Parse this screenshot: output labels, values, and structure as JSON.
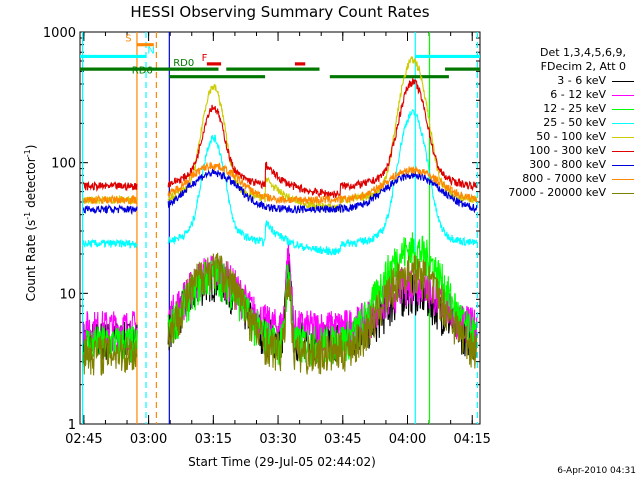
{
  "chart_data": {
    "type": "line",
    "title": "HESSI Observing Summary Count Rates",
    "xlabel": "Start Time (29-Jul-05 02:44:02)",
    "ylabel_main": "Count Rate (s",
    "ylabel_sup1": "-1",
    "ylabel_mid": " detector",
    "ylabel_sup2": "-1",
    "ylabel_end": ")",
    "yscale": "log",
    "ylim": [
      1,
      1000
    ],
    "xlim": [
      2.735,
      4.28
    ],
    "x_ticks": [
      {
        "x": 2.75,
        "label": "02:45"
      },
      {
        "x": 3.0,
        "label": "03:00"
      },
      {
        "x": 3.25,
        "label": "03:15"
      },
      {
        "x": 3.5,
        "label": "03:30"
      },
      {
        "x": 3.75,
        "label": "03:45"
      },
      {
        "x": 4.0,
        "label": "04:00"
      },
      {
        "x": 4.25,
        "label": "04:15"
      }
    ],
    "y_ticks": [
      {
        "y": 1,
        "label": "1"
      },
      {
        "y": 10,
        "label": "10"
      },
      {
        "y": 100,
        "label": "100"
      },
      {
        "y": 1000,
        "label": "1000"
      }
    ],
    "legend_header": [
      "Det 1,3,4,5,6,9,",
      "FDecim 2, Att 0"
    ],
    "series": [
      {
        "name": "3 - 6 keV",
        "color": "#000000",
        "shape": "low",
        "base": 4.5,
        "pk1": 14,
        "pk2": 11
      },
      {
        "name": "6 - 12 keV",
        "color": "#ff00ff",
        "shape": "low",
        "base": 5.5,
        "pk1": 16,
        "pk2": 13
      },
      {
        "name": "12 - 25 keV",
        "color": "#00ff00",
        "shape": "low",
        "base": 4.2,
        "pk1": 15,
        "pk2": 24
      },
      {
        "name": "25 - 50 keV",
        "color": "#00ffff",
        "shape": "saa",
        "base": 24,
        "pk1": 145,
        "pk2": 230
      },
      {
        "name": "50 - 100 keV",
        "color": "#cccc00",
        "shape": "saa",
        "base": 52,
        "pk1": 360,
        "pk2": 590
      },
      {
        "name": "100 - 300 keV",
        "color": "#dd0000",
        "shape": "saa",
        "base": 66,
        "pk1": 240,
        "pk2": 390
      },
      {
        "name": "300 - 800 keV",
        "color": "#0000dd",
        "shape": "orbit",
        "base": 44,
        "pk1": 83,
        "pk2": 80
      },
      {
        "name": "800 - 7000 keV",
        "color": "#ff8800",
        "shape": "orbit",
        "base": 52,
        "pk1": 95,
        "pk2": 88
      },
      {
        "name": "7000 - 20000 keV",
        "color": "#808000",
        "shape": "low",
        "base": 3.6,
        "pk1": 17,
        "pk2": 16
      }
    ],
    "flag_bars": [
      {
        "label": "S",
        "color": "#ff8800",
        "y": 800,
        "segments": [
          [
            2.955,
            3.02
          ]
        ],
        "label_x": 2.91
      },
      {
        "label": "N",
        "color": "#00ffff",
        "y": 650,
        "segments": [
          [
            2.735,
            2.99
          ],
          [
            4.03,
            4.28
          ]
        ],
        "label_x": 2.995
      },
      {
        "label": "RD0",
        "color": "#007700",
        "y": 520,
        "segments": [
          [
            2.735,
            3.27
          ],
          [
            3.3,
            3.66
          ],
          [
            4.145,
            4.28
          ]
        ],
        "label_x": 3.095
      },
      {
        "label": "RD6",
        "color": "#007700",
        "y": 455,
        "segments": [
          [
            3.08,
            3.45
          ],
          [
            3.7,
            4.16
          ]
        ],
        "label_x": 2.935
      },
      {
        "label": "F",
        "color": "#dd0000",
        "y": 570,
        "segments": [
          [
            3.225,
            3.28
          ],
          [
            3.565,
            3.605
          ]
        ],
        "label_x": 3.205
      }
    ],
    "vlines": [
      {
        "x": 2.955,
        "color": "#ff8800",
        "dash": false
      },
      {
        "x": 3.03,
        "color": "#ff8800",
        "dash": true
      },
      {
        "x": 2.745,
        "color": "#00ffff",
        "dash": false
      },
      {
        "x": 2.99,
        "color": "#00ffff",
        "dash": true
      },
      {
        "x": 4.03,
        "color": "#00ffff",
        "dash": false
      },
      {
        "x": 4.27,
        "color": "#00ffff",
        "dash": true
      },
      {
        "x": 3.08,
        "color": "#0000dd",
        "dash": false
      },
      {
        "x": 4.085,
        "color": "#00ff00",
        "dash": false
      }
    ]
  },
  "timestamp": "6-Apr-2010 04:31"
}
